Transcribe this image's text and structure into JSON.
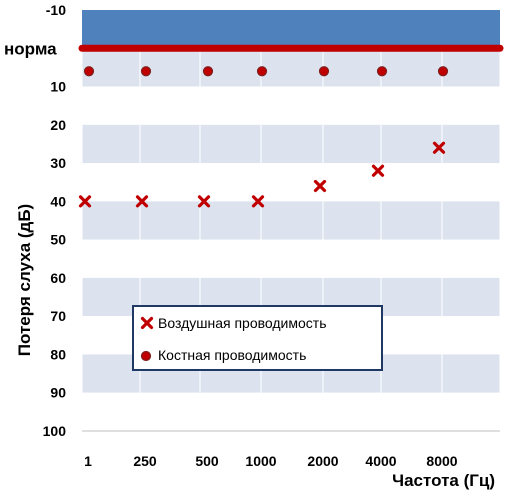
{
  "chart_data": {
    "type": "scatter",
    "xlabel": "Частота (Гц)",
    "ylabel": "Потеря слуха (дБ)",
    "x_ticks": [
      "1",
      "250",
      "500",
      "1000",
      "2000",
      "4000",
      "8000"
    ],
    "y_ticks": [
      "-10",
      "норма",
      "10",
      "20",
      "30",
      "40",
      "50",
      "60",
      "70",
      "80",
      "90",
      "100"
    ],
    "y_tick_values": [
      -10,
      0,
      10,
      20,
      30,
      40,
      50,
      60,
      70,
      80,
      90,
      100
    ],
    "ylim": [
      -10,
      100
    ],
    "y_inverted": true,
    "normal_line_value": 0,
    "normal_label": "норма",
    "series": [
      {
        "name": "Воздушная проводимость",
        "marker": "x",
        "color": "#C00000",
        "points": [
          {
            "x": "1",
            "y": 40
          },
          {
            "x": "250",
            "y": 40
          },
          {
            "x": "500",
            "y": 40
          },
          {
            "x": "1000",
            "y": 40
          },
          {
            "x": "2000",
            "y": 36
          },
          {
            "x": "4000",
            "y": 32
          },
          {
            "x": "8000",
            "y": 26
          }
        ]
      },
      {
        "name": "Костная проводимость",
        "marker": "circle",
        "color": "#C00000",
        "points": [
          {
            "x": "1",
            "y": 6
          },
          {
            "x": "250",
            "y": 6
          },
          {
            "x": "500",
            "y": 6
          },
          {
            "x": "1000",
            "y": 6
          },
          {
            "x": "2000",
            "y": 6
          },
          {
            "x": "4000",
            "y": 6
          },
          {
            "x": "8000",
            "y": 6
          }
        ]
      }
    ],
    "legend": {
      "entries": [
        "Воздушная проводимость",
        "Костная проводимость"
      ],
      "placement": "bottom-center"
    },
    "colors": {
      "band_top": "#4F81BD",
      "band_light": "#DCE3EF",
      "band_white": "#FFFFFF",
      "normal_line": "#C00000",
      "marker": "#C00000",
      "legend_border": "#1F3864"
    }
  }
}
